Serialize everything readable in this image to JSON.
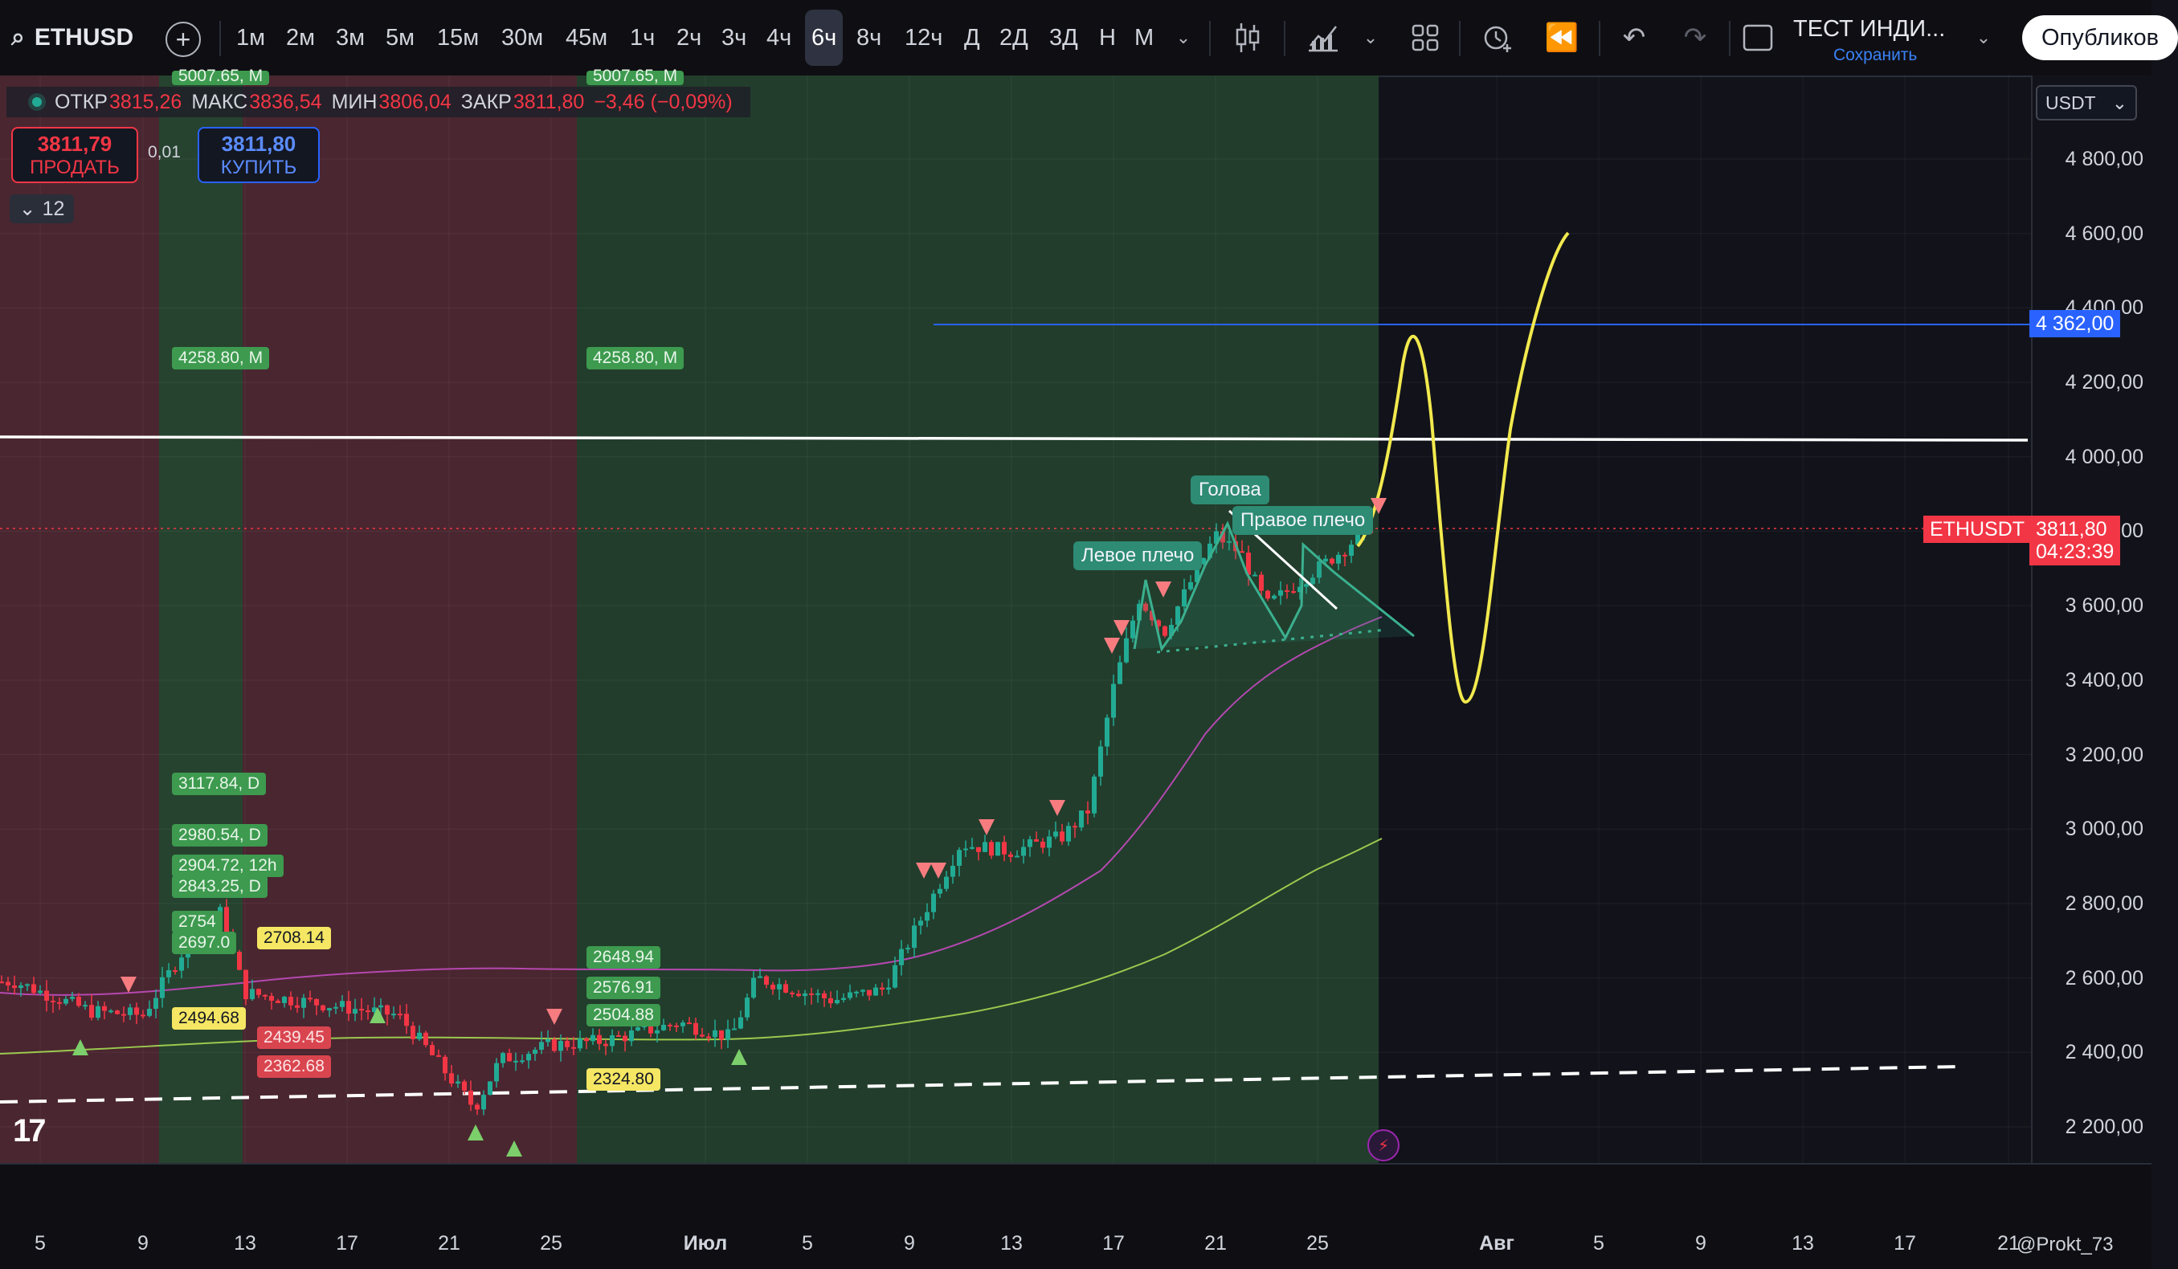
{
  "toolbar": {
    "symbol": "ETHUSD",
    "timeframes": [
      "1м",
      "2м",
      "3м",
      "5м",
      "15м",
      "30м",
      "45м",
      "1ч",
      "2ч",
      "3ч",
      "4ч",
      "6ч",
      "8ч",
      "12ч",
      "Д",
      "2Д",
      "3Д",
      "Н",
      "М"
    ],
    "active_timeframe": "6ч",
    "layout_title": "ТЕСТ ИНДИ...",
    "layout_status": "Сохранить",
    "publish_label": "Опубликов"
  },
  "legend": {
    "open_label": "ОТКР",
    "open": "3815,26",
    "high_label": "МАКС",
    "high": "3836,54",
    "low_label": "МИН",
    "low": "3806,04",
    "close_label": "ЗАКР",
    "close": "3811,80",
    "change": "−3,46 (−0,09%)"
  },
  "trade": {
    "sell_price": "3811,79",
    "sell_label": "ПРОДАТЬ",
    "spread": "0,01",
    "buy_price": "3811,80",
    "buy_label": "КУПИТЬ",
    "indicators_count": "12"
  },
  "level_labels": {
    "top_cut_1": "5007.65, M",
    "top_cut_2": "5007.65, M",
    "m4258_1": "4258.80, M",
    "m4258_2": "4258.80, M",
    "d3117": "3117.84, D",
    "d2980": "2980.54, D",
    "h2904": "2904.72, 12h",
    "d2843": "2843.25, D",
    "v2754": "2754",
    "v2697": "2697.0",
    "y2708": "2708.14",
    "y2494": "2494.68",
    "r2439": "2439.45",
    "r2362": "2362.68",
    "g2648": "2648.94",
    "g2576": "2576.91",
    "g2504": "2504.88",
    "y2324": "2324.80"
  },
  "pattern_labels": {
    "left_shoulder": "Левое плечо",
    "head": "Голова",
    "right_shoulder": "Правое плечо"
  },
  "price_scale": {
    "currency": "USDT",
    "ticks": [
      "4 800,00",
      "4 600,00",
      "4 400,00",
      "4 200,00",
      "4 000,00",
      "3 800,00",
      "3 600,00",
      "3 400,00",
      "3 200,00",
      "3 000,00",
      "2 800,00",
      "2 600,00",
      "2 400,00",
      "2 200,00"
    ],
    "blue_line_label": "4 362,00",
    "symbol_tag": "ETHUSDT",
    "last_price": "3811,80",
    "countdown": "04:23:39"
  },
  "time_axis": {
    "ticks": [
      "5",
      "9",
      "13",
      "17",
      "21",
      "25",
      "Июл",
      "5",
      "9",
      "13",
      "17",
      "21",
      "25",
      "Авг",
      "5",
      "9",
      "13",
      "17",
      "21"
    ],
    "author": "@Prokt_73"
  },
  "colors": {
    "up": "#22ab94",
    "down": "#f23645",
    "accent_blue": "#2962ff",
    "green_zone": "#2c4a35",
    "red_zone": "#5a2a30",
    "projection": "#f2e94e"
  },
  "chart_data": {
    "type": "candlestick",
    "symbol": "ETHUSD",
    "timeframe": "6ч",
    "y_range": [
      2150,
      4900
    ],
    "x_ticks": [
      "5",
      "9",
      "13",
      "17",
      "21",
      "25",
      "Июл",
      "5",
      "9",
      "13",
      "17",
      "21",
      "25",
      "Авг",
      "5",
      "9",
      "13",
      "17",
      "21"
    ],
    "price_path": [
      [
        "2025-06-04",
        2590
      ],
      [
        "2025-06-07",
        2510
      ],
      [
        "2025-06-09",
        2500
      ],
      [
        "2025-06-11",
        2720
      ],
      [
        "2025-06-12",
        2780
      ],
      [
        "2025-06-13",
        2560
      ],
      [
        "2025-06-15",
        2540
      ],
      [
        "2025-06-17",
        2520
      ],
      [
        "2025-06-19",
        2500
      ],
      [
        "2025-06-20",
        2420
      ],
      [
        "2025-06-22",
        2250
      ],
      [
        "2025-06-23",
        2380
      ],
      [
        "2025-06-25",
        2420
      ],
      [
        "2025-06-27",
        2430
      ],
      [
        "2025-06-30",
        2480
      ],
      [
        "2025-07-02",
        2440
      ],
      [
        "2025-07-03",
        2600
      ],
      [
        "2025-07-06",
        2540
      ],
      [
        "2025-07-08",
        2570
      ],
      [
        "2025-07-09",
        2700
      ],
      [
        "2025-07-11",
        2960
      ],
      [
        "2025-07-13",
        2940
      ],
      [
        "2025-07-15",
        2980
      ],
      [
        "2025-07-16",
        3050
      ],
      [
        "2025-07-17",
        3380
      ],
      [
        "2025-07-18",
        3620
      ],
      [
        "2025-07-19",
        3530
      ],
      [
        "2025-07-21",
        3790
      ],
      [
        "2025-07-22",
        3740
      ],
      [
        "2025-07-23",
        3600
      ],
      [
        "2025-07-25",
        3700
      ],
      [
        "2025-07-26",
        3750
      ],
      [
        "2025-07-27",
        3812
      ]
    ],
    "projection": [
      [
        "2025-07-27",
        3720
      ],
      [
        "2025-07-29",
        4300
      ],
      [
        "2025-07-31",
        3380
      ],
      [
        "2025-08-03",
        4330
      ],
      [
        "2025-08-05",
        4590
      ]
    ],
    "horizontal_lines": [
      {
        "price": 4362,
        "label": "4 362,00"
      },
      {
        "price": 4060
      }
    ],
    "last_price": 3811.8
  }
}
